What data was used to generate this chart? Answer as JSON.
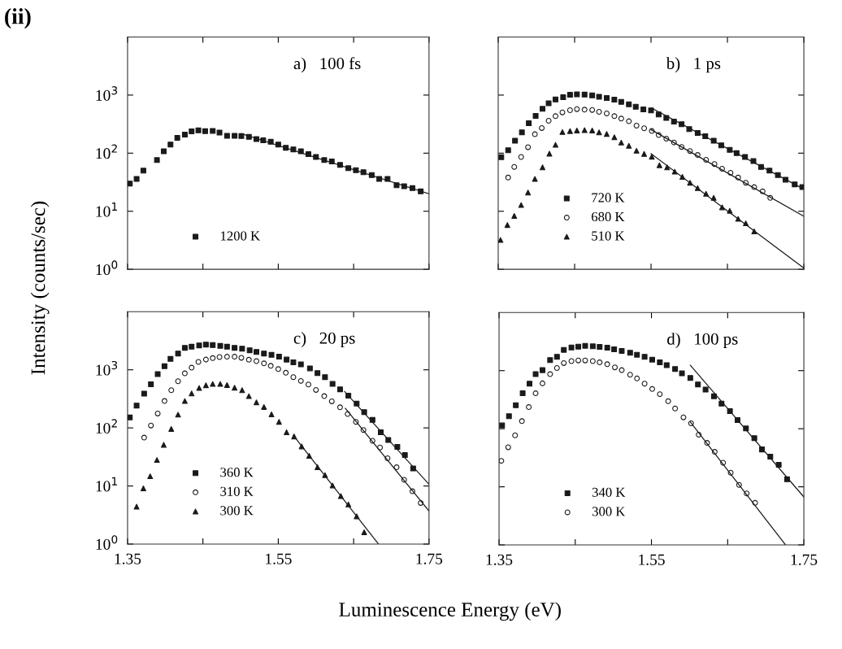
{
  "chart_data": [
    {
      "type": "scatter",
      "title": "a)   100 fs",
      "ylabel": "Intensity (counts/sec)",
      "annotations": [
        "(ii)"
      ],
      "log": "y",
      "xlim": [
        1.35,
        1.75
      ],
      "ylim": [
        1,
        10000
      ],
      "xticks": [
        1.35,
        1.45,
        1.55,
        1.65,
        1.75
      ],
      "yticks": [
        {
          "value": 1,
          "label": "10$^{0}$"
        },
        {
          "value": 10,
          "label": "10$^{1}$"
        },
        {
          "value": 100,
          "label": "10$^{2}$"
        },
        {
          "value": 1000,
          "label": "10$^{3}$"
        }
      ],
      "tick_labels": "y",
      "legend": "bottom left",
      "series": [
        {
          "name": "1200 K",
          "marker": "square",
          "color": "#1a1a1a",
          "x": [
            1.353,
            1.362,
            1.371,
            1.389,
            1.398,
            1.407,
            1.416,
            1.426,
            1.435,
            1.444,
            1.453,
            1.463,
            1.472,
            1.482,
            1.492,
            1.501,
            1.511,
            1.521,
            1.53,
            1.54,
            1.55,
            1.56,
            1.57,
            1.58,
            1.59,
            1.6,
            1.611,
            1.621,
            1.632,
            1.643,
            1.653,
            1.663,
            1.674,
            1.684,
            1.695,
            1.707,
            1.717,
            1.728,
            1.739
          ],
          "values": [
            30,
            36,
            50,
            76,
            108,
            141,
            183,
            208,
            237,
            247,
            239,
            242,
            226,
            199,
            199,
            197,
            191,
            175,
            166,
            157,
            141,
            124,
            116,
            108,
            96,
            86,
            76,
            72,
            63,
            55,
            51,
            47,
            42,
            36,
            36,
            28,
            27,
            25,
            22
          ]
        },
        {
          "type": "line",
          "color": "#1a1a1a",
          "x": [
            1.501,
            1.75
          ],
          "values": [
            217,
            20
          ]
        }
      ]
    },
    {
      "type": "scatter",
      "title": "b)   1 ps",
      "log": "y",
      "xlim": [
        1.35,
        1.75
      ],
      "ylim": [
        1,
        10000
      ],
      "xticks": [
        1.35,
        1.45,
        1.55,
        1.65,
        1.75
      ],
      "yticks": [
        1,
        10,
        100,
        1000
      ],
      "tick_labels": false,
      "legend": "bottom left",
      "series": [
        {
          "name": "720 K",
          "marker": "square",
          "color": "#1a1a1a",
          "x": [
            1.354,
            1.363,
            1.372,
            1.381,
            1.39,
            1.399,
            1.408,
            1.416,
            1.425,
            1.435,
            1.444,
            1.453,
            1.463,
            1.473,
            1.482,
            1.492,
            1.502,
            1.511,
            1.521,
            1.53,
            1.54,
            1.55,
            1.56,
            1.57,
            1.58,
            1.59,
            1.6,
            1.611,
            1.621,
            1.632,
            1.642,
            1.653,
            1.662,
            1.673,
            1.684,
            1.694,
            1.705,
            1.716,
            1.726,
            1.738,
            1.748
          ],
          "values": [
            85,
            112,
            164,
            228,
            328,
            438,
            579,
            725,
            843,
            918,
            1010,
            1030,
            1020,
            990,
            937,
            889,
            834,
            765,
            695,
            631,
            567,
            543,
            462,
            403,
            350,
            315,
            259,
            223,
            196,
            164,
            136,
            114,
            100,
            86,
            73,
            58,
            50,
            42,
            35,
            29,
            26
          ]
        },
        {
          "name": "680 K",
          "marker": "circle",
          "color": "#1a1a1a",
          "x": [
            1.363,
            1.371,
            1.38,
            1.389,
            1.398,
            1.407,
            1.416,
            1.425,
            1.434,
            1.444,
            1.453,
            1.463,
            1.473,
            1.482,
            1.492,
            1.502,
            1.511,
            1.521,
            1.531,
            1.541,
            1.551,
            1.56,
            1.57,
            1.58,
            1.59,
            1.601,
            1.611,
            1.622,
            1.633,
            1.643,
            1.654,
            1.664,
            1.674,
            1.685,
            1.696,
            1.706
          ],
          "values": [
            38,
            58,
            86,
            127,
            212,
            271,
            361,
            434,
            504,
            549,
            573,
            561,
            555,
            515,
            483,
            434,
            394,
            354,
            298,
            268,
            241,
            205,
            178,
            153,
            128,
            109,
            93,
            77,
            65,
            54,
            46,
            38,
            31,
            26,
            22,
            17
          ]
        },
        {
          "name": "510 K",
          "marker": "triangle",
          "color": "#1a1a1a",
          "x": [
            1.353,
            1.362,
            1.371,
            1.38,
            1.389,
            1.398,
            1.408,
            1.417,
            1.425,
            1.434,
            1.444,
            1.453,
            1.463,
            1.473,
            1.482,
            1.492,
            1.502,
            1.511,
            1.521,
            1.531,
            1.541,
            1.551,
            1.561,
            1.571,
            1.581,
            1.591,
            1.601,
            1.611,
            1.622,
            1.632,
            1.643,
            1.653,
            1.664,
            1.674,
            1.685
          ],
          "values": [
            3.2,
            5.8,
            8.3,
            12.8,
            21,
            36,
            57,
            98,
            139,
            231,
            240,
            246,
            249,
            246,
            228,
            214,
            188,
            152,
            134,
            110,
            97,
            87,
            62,
            57,
            48,
            39,
            31,
            25,
            20,
            17,
            11.7,
            10.2,
            7.4,
            6.2,
            4.5
          ]
        },
        {
          "type": "line",
          "color": "#1a1a1a",
          "x": [
            1.55,
            1.75
          ],
          "values": [
            604,
            24
          ]
        },
        {
          "type": "line",
          "color": "#1a1a1a",
          "x": [
            1.55,
            1.75
          ],
          "values": [
            254,
            8.2
          ]
        },
        {
          "type": "line",
          "color": "#1a1a1a",
          "x": [
            1.55,
            1.75
          ],
          "values": [
            98,
            1.05
          ]
        }
      ]
    },
    {
      "type": "scatter",
      "title": "c)   20 ps",
      "xlabel": "Luminescence Energy (eV)",
      "log": "y",
      "xlim": [
        1.35,
        1.75
      ],
      "ylim": [
        1,
        10000
      ],
      "xticks": [
        {
          "value": 1.35,
          "label": "1.35"
        },
        {
          "value": 1.45,
          "label": null
        },
        {
          "value": 1.55,
          "label": "1.55"
        },
        {
          "value": 1.65,
          "label": null
        },
        {
          "value": 1.75,
          "label": "1.75"
        }
      ],
      "yticks": [
        {
          "value": 1,
          "label": "10$^{0}$"
        },
        {
          "value": 10,
          "label": "10$^{1}$"
        },
        {
          "value": 100,
          "label": "10$^{2}$"
        },
        {
          "value": 1000,
          "label": "10$^{3}$"
        }
      ],
      "legend": "bottom left",
      "series": [
        {
          "name": "360 K",
          "marker": "square",
          "color": "#1a1a1a",
          "x": [
            1.353,
            1.362,
            1.372,
            1.381,
            1.39,
            1.399,
            1.407,
            1.417,
            1.426,
            1.435,
            1.445,
            1.454,
            1.463,
            1.473,
            1.482,
            1.492,
            1.502,
            1.512,
            1.521,
            1.531,
            1.541,
            1.551,
            1.561,
            1.57,
            1.58,
            1.592,
            1.602,
            1.612,
            1.622,
            1.632,
            1.643,
            1.654,
            1.664,
            1.675,
            1.686,
            1.696,
            1.708,
            1.718,
            1.729
          ],
          "values": [
            151,
            242,
            388,
            565,
            842,
            1150,
            1540,
            1910,
            2390,
            2500,
            2630,
            2720,
            2660,
            2580,
            2500,
            2390,
            2310,
            2170,
            2030,
            1910,
            1810,
            1680,
            1500,
            1350,
            1240,
            1060,
            879,
            748,
            571,
            461,
            360,
            263,
            187,
            137,
            84,
            62,
            47,
            34,
            20
          ]
        },
        {
          "name": "310 K",
          "marker": "circle",
          "color": "#1a1a1a",
          "x": [
            1.372,
            1.381,
            1.39,
            1.399,
            1.408,
            1.417,
            1.426,
            1.435,
            1.444,
            1.454,
            1.463,
            1.472,
            1.482,
            1.492,
            1.501,
            1.511,
            1.521,
            1.531,
            1.54,
            1.55,
            1.56,
            1.57,
            1.58,
            1.59,
            1.6,
            1.611,
            1.621,
            1.632,
            1.642,
            1.653,
            1.663,
            1.675,
            1.685,
            1.695,
            1.707,
            1.717,
            1.728,
            1.739
          ],
          "values": [
            68,
            110,
            177,
            290,
            446,
            636,
            869,
            1090,
            1370,
            1500,
            1590,
            1660,
            1680,
            1680,
            1610,
            1490,
            1410,
            1290,
            1170,
            1030,
            889,
            748,
            643,
            559,
            451,
            352,
            287,
            226,
            173,
            127,
            92,
            60,
            46,
            30,
            21,
            12.8,
            8.1,
            5.1
          ]
        },
        {
          "name": "300 K",
          "marker": "triangle",
          "color": "#1a1a1a",
          "x": [
            1.362,
            1.371,
            1.38,
            1.389,
            1.398,
            1.408,
            1.417,
            1.426,
            1.435,
            1.445,
            1.454,
            1.463,
            1.473,
            1.482,
            1.492,
            1.502,
            1.511,
            1.521,
            1.531,
            1.541,
            1.551,
            1.561,
            1.571,
            1.581,
            1.591,
            1.602,
            1.612,
            1.622,
            1.633,
            1.643,
            1.654,
            1.664
          ],
          "values": [
            4.4,
            9.1,
            14.7,
            28,
            51,
            96,
            169,
            290,
            392,
            486,
            542,
            571,
            571,
            547,
            492,
            446,
            352,
            275,
            229,
            171,
            127,
            84,
            71,
            48,
            33,
            21,
            15.4,
            10.2,
            6.7,
            4.8,
            3.0,
            1.6
          ]
        },
        {
          "type": "line",
          "color": "#1a1a1a",
          "x": [
            1.638,
            1.75
          ],
          "values": [
            423,
            10.7
          ]
        },
        {
          "type": "line",
          "color": "#1a1a1a",
          "x": [
            1.639,
            1.75
          ],
          "values": [
            217,
            3.7
          ]
        },
        {
          "type": "line",
          "color": "#1a1a1a",
          "x": [
            1.57,
            1.683
          ],
          "values": [
            74,
            1
          ]
        }
      ]
    },
    {
      "type": "scatter",
      "title": "d)   100 ps",
      "log": "y",
      "xlim": [
        1.35,
        1.75
      ],
      "ylim": [
        1,
        10000
      ],
      "xticks": [
        {
          "value": 1.35,
          "label": "1.35"
        },
        {
          "value": 1.45,
          "label": null
        },
        {
          "value": 1.55,
          "label": "1.55"
        },
        {
          "value": 1.65,
          "label": null
        },
        {
          "value": 1.75,
          "label": "1.75"
        }
      ],
      "yticks": [
        1,
        10,
        100,
        1000
      ],
      "tick_labels": "x",
      "legend": "bottom left",
      "series": [
        {
          "name": "340 K",
          "marker": "square",
          "color": "#1a1a1a",
          "x": [
            1.354,
            1.363,
            1.372,
            1.381,
            1.39,
            1.398,
            1.407,
            1.417,
            1.426,
            1.435,
            1.445,
            1.454,
            1.463,
            1.473,
            1.482,
            1.492,
            1.501,
            1.511,
            1.522,
            1.531,
            1.541,
            1.551,
            1.561,
            1.57,
            1.581,
            1.59,
            1.601,
            1.611,
            1.621,
            1.632,
            1.642,
            1.653,
            1.663,
            1.674,
            1.685,
            1.695,
            1.706,
            1.717,
            1.728
          ],
          "values": [
            114,
            164,
            254,
            407,
            598,
            870,
            1020,
            1520,
            1730,
            2280,
            2510,
            2590,
            2680,
            2620,
            2570,
            2490,
            2330,
            2190,
            2030,
            1880,
            1730,
            1550,
            1390,
            1240,
            1070,
            898,
            749,
            579,
            472,
            361,
            271,
            201,
            141,
            101,
            69,
            44,
            33,
            24,
            13.5
          ]
        },
        {
          "name": "300 K",
          "marker": "circle",
          "color": "#1a1a1a",
          "x": [
            1.353,
            1.362,
            1.371,
            1.38,
            1.389,
            1.398,
            1.407,
            1.417,
            1.426,
            1.435,
            1.445,
            1.454,
            1.463,
            1.473,
            1.482,
            1.492,
            1.502,
            1.511,
            1.522,
            1.531,
            1.541,
            1.551,
            1.561,
            1.572,
            1.581,
            1.592,
            1.602,
            1.612,
            1.623,
            1.633,
            1.644,
            1.654,
            1.665,
            1.675,
            1.686
          ],
          "values": [
            28,
            48,
            77,
            135,
            236,
            407,
            604,
            870,
            1110,
            1350,
            1460,
            1500,
            1500,
            1460,
            1390,
            1290,
            1140,
            1020,
            851,
            733,
            598,
            483,
            394,
            298,
            223,
            157,
            124,
            79,
            57,
            40,
            26,
            17.5,
            10.8,
            7.7,
            5.3
          ]
        },
        {
          "type": "line",
          "color": "#1a1a1a",
          "x": [
            1.601,
            1.75
          ],
          "values": [
            1240,
            6.7
          ]
        },
        {
          "type": "line",
          "color": "#1a1a1a",
          "x": [
            1.601,
            1.726
          ],
          "values": [
            131,
            1
          ]
        }
      ]
    }
  ]
}
